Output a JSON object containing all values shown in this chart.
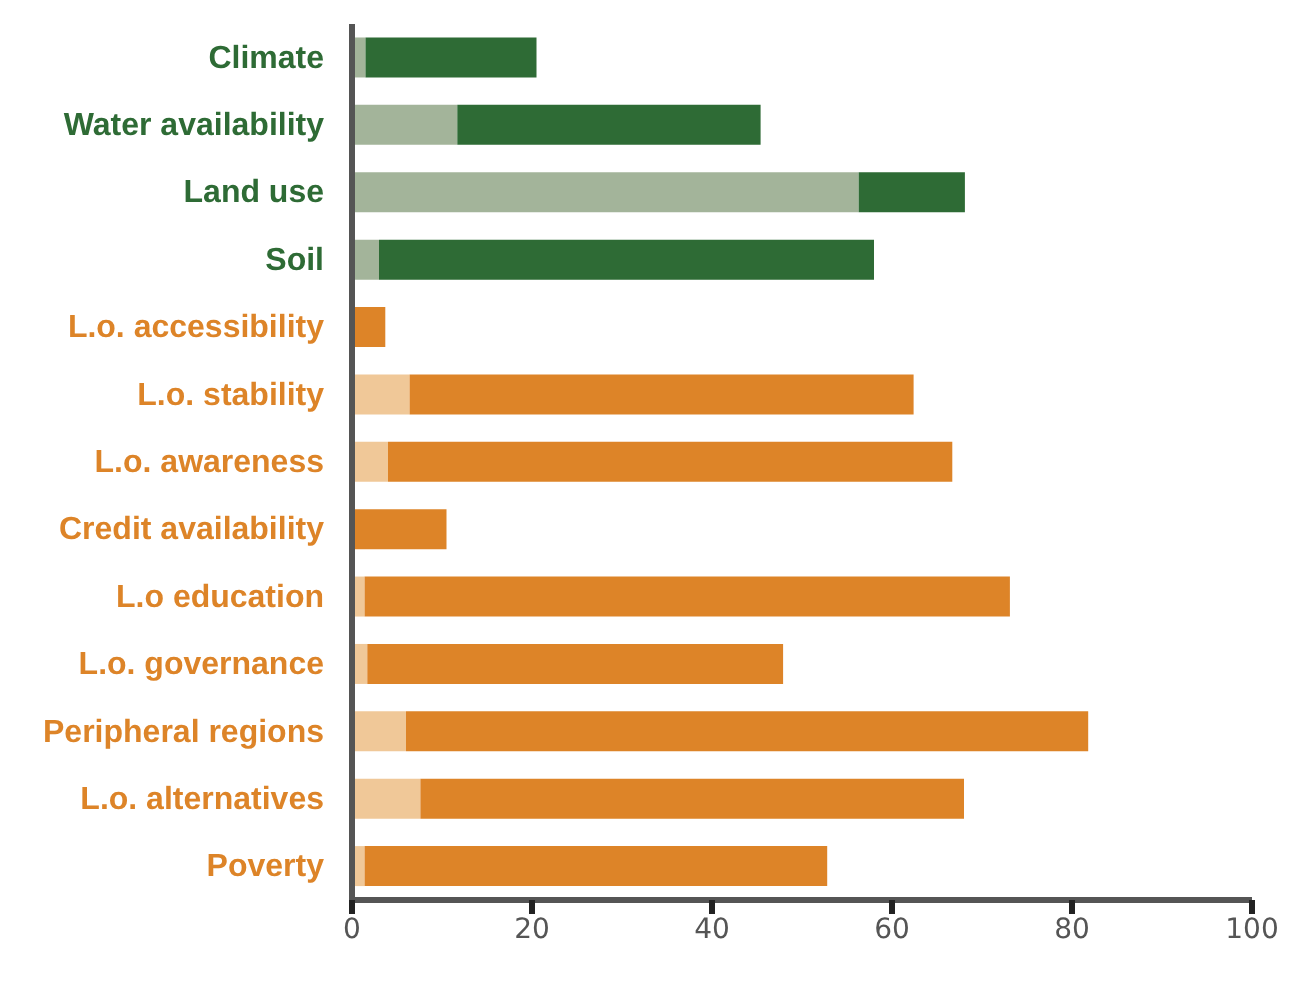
{
  "chart_data": {
    "type": "bar",
    "orientation": "horizontal",
    "stacked": true,
    "categories": [
      "Climate",
      "Water availability",
      "Land use",
      "Soil",
      "L.o. accessibility",
      "L.o. stability",
      "L.o. awareness",
      "Credit availability",
      "L.o education",
      "L.o. governance",
      "Peripheral regions",
      "L.o. alternatives",
      "Poverty"
    ],
    "series": [
      {
        "colors": [
          "#a3b49a",
          "#a3b49a",
          "#a3b49a",
          "#a3b49a",
          "#f0c898",
          "#f0c898",
          "#f0c898",
          "#f0c898",
          "#f0c898",
          "#f0c898",
          "#f0c898",
          "#f0c898",
          "#f0c898"
        ],
        "values": [
          1.5,
          11.7,
          56.3,
          3.0,
          0,
          6.4,
          4.0,
          0,
          1.4,
          1.7,
          6.0,
          7.6,
          1.4
        ]
      },
      {
        "colors": [
          "#2e6b35",
          "#2e6b35",
          "#2e6b35",
          "#2e6b35",
          "#dd8428",
          "#dd8428",
          "#dd8428",
          "#dd8428",
          "#dd8428",
          "#dd8428",
          "#dd8428",
          "#dd8428",
          "#dd8428"
        ],
        "values": [
          19.0,
          33.7,
          11.8,
          55.0,
          3.7,
          56.0,
          62.7,
          10.5,
          71.7,
          46.2,
          75.8,
          60.4,
          51.4
        ]
      }
    ],
    "xlim": [
      0,
      100
    ],
    "xticks": [
      0,
      20,
      40,
      60,
      80,
      100
    ],
    "grid": false,
    "legend": false
  }
}
